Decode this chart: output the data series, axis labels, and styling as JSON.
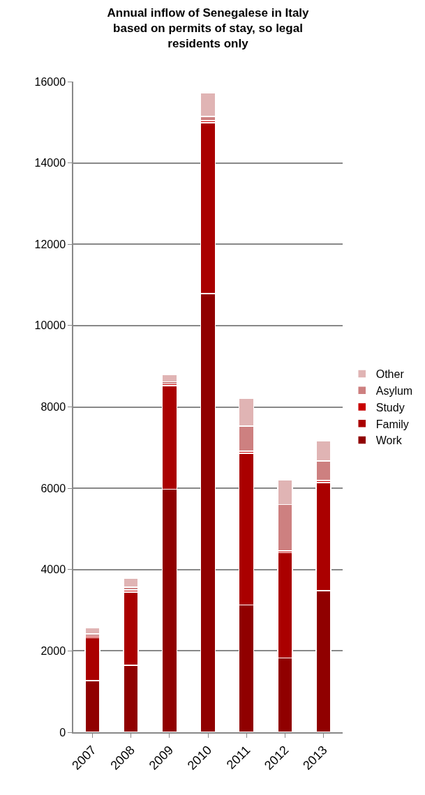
{
  "chart_data": {
    "type": "bar",
    "title": "Annual inflow of Senegalese in Italy based on permits of stay, so legal residents only",
    "stacked": true,
    "categories": [
      "2007",
      "2008",
      "2009",
      "2010",
      "2011",
      "2012",
      "2013"
    ],
    "series": [
      {
        "name": "Work",
        "color": "#900000",
        "values": [
          1270,
          1650,
          5980,
          10790,
          3130,
          1830,
          3480
        ]
      },
      {
        "name": "Family",
        "color": "#aa0000",
        "values": [
          1050,
          1800,
          2540,
          4200,
          3730,
          2590,
          2660
        ]
      },
      {
        "name": "Study",
        "color": "#c80000",
        "values": [
          40,
          50,
          50,
          50,
          50,
          40,
          50
        ]
      },
      {
        "name": "Asylum",
        "color": "#cd8080",
        "values": [
          60,
          70,
          50,
          100,
          620,
          1140,
          480
        ]
      },
      {
        "name": "Other",
        "color": "#e0b4b4",
        "values": [
          140,
          220,
          180,
          580,
          680,
          600,
          490
        ]
      }
    ],
    "ylim": [
      0,
      16000
    ],
    "yticks": [
      0,
      2000,
      4000,
      6000,
      8000,
      10000,
      12000,
      14000,
      16000
    ],
    "grid": "y",
    "legend": "right"
  }
}
